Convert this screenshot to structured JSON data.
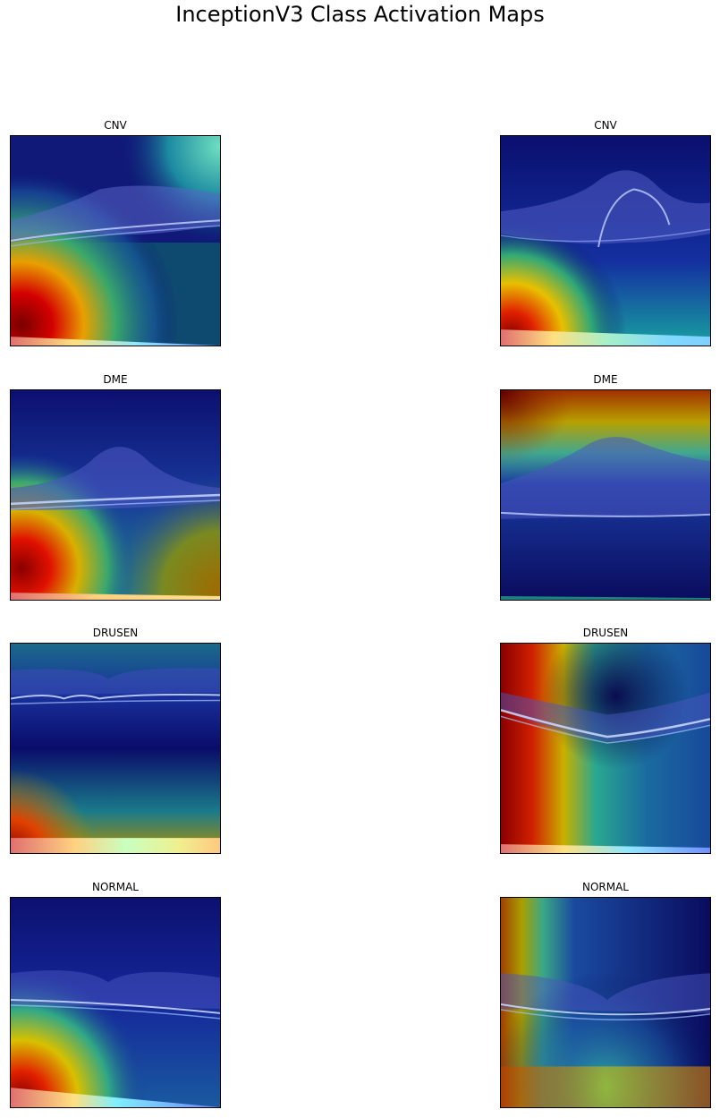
{
  "figure": {
    "title": "InceptionV3 Class Activation Maps"
  },
  "panels": [
    {
      "label": "CNV"
    },
    {
      "label": "CNV"
    },
    {
      "label": "DME"
    },
    {
      "label": "DME"
    },
    {
      "label": "DRUSEN"
    },
    {
      "label": "DRUSEN"
    },
    {
      "label": "NORMAL"
    },
    {
      "label": "NORMAL"
    }
  ]
}
